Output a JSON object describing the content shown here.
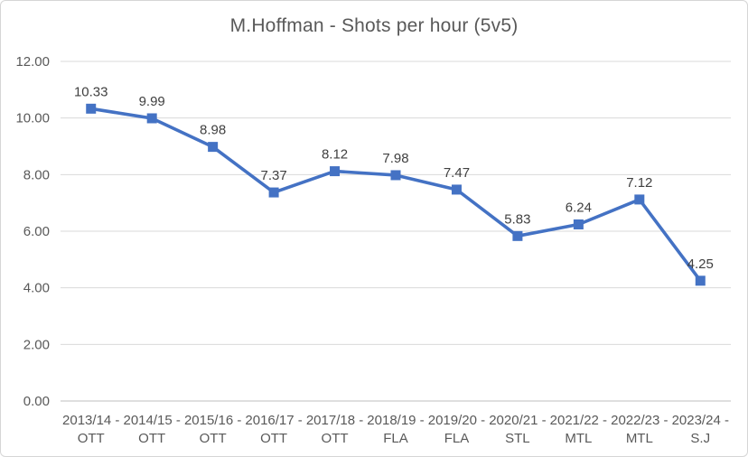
{
  "chart_data": {
    "type": "line",
    "title": "M.Hoffman - Shots per hour (5v5)",
    "xlabel": "",
    "ylabel": "",
    "ylim": [
      0,
      12
    ],
    "grid": true,
    "legend": "none",
    "marker_shape": "square",
    "categories": [
      "2013/14 - OTT",
      "2014/15 - OTT",
      "2015/16 - OTT",
      "2016/17 - OTT",
      "2017/18 - OTT",
      "2018/19 - FLA",
      "2019/20 - FLA",
      "2020/21 - STL",
      "2021/22 - MTL",
      "2022/23 - MTL",
      "2023/24 - S.J"
    ],
    "x_tick_lines": [
      [
        "2013/14 -",
        "OTT"
      ],
      [
        "2014/15 -",
        "OTT"
      ],
      [
        "2015/16 -",
        "OTT"
      ],
      [
        "2016/17 -",
        "OTT"
      ],
      [
        "2017/18 -",
        "OTT"
      ],
      [
        "2018/19 -",
        "FLA"
      ],
      [
        "2019/20 -",
        "FLA"
      ],
      [
        "2020/21 -",
        "STL"
      ],
      [
        "2021/22 -",
        "MTL"
      ],
      [
        "2022/23 -",
        "MTL"
      ],
      [
        "2023/24 -",
        "S.J"
      ]
    ],
    "series": [
      {
        "name": "Shots per hour (5v5)",
        "values": [
          10.33,
          9.99,
          8.98,
          7.37,
          8.12,
          7.98,
          7.47,
          5.83,
          6.24,
          7.12,
          4.25
        ]
      }
    ],
    "data_labels": [
      "10.33",
      "9.99",
      "8.98",
      "7.37",
      "8.12",
      "7.98",
      "7.47",
      "5.83",
      "6.24",
      "7.12",
      "4.25"
    ],
    "y_ticks": [
      {
        "value": 0,
        "label": "0.00"
      },
      {
        "value": 2,
        "label": "2.00"
      },
      {
        "value": 4,
        "label": "4.00"
      },
      {
        "value": 6,
        "label": "6.00"
      },
      {
        "value": 8,
        "label": "8.00"
      },
      {
        "value": 10,
        "label": "10.00"
      },
      {
        "value": 12,
        "label": "12.00"
      }
    ],
    "colors": {
      "series": "#4472c4",
      "grid": "#d9d9d9",
      "axis_line": "#bfbfbf",
      "axis_label": "#595959",
      "data_label": "#404040",
      "title": "#595959",
      "background": "#ffffff",
      "frame_border": "#d6d6d6"
    }
  }
}
